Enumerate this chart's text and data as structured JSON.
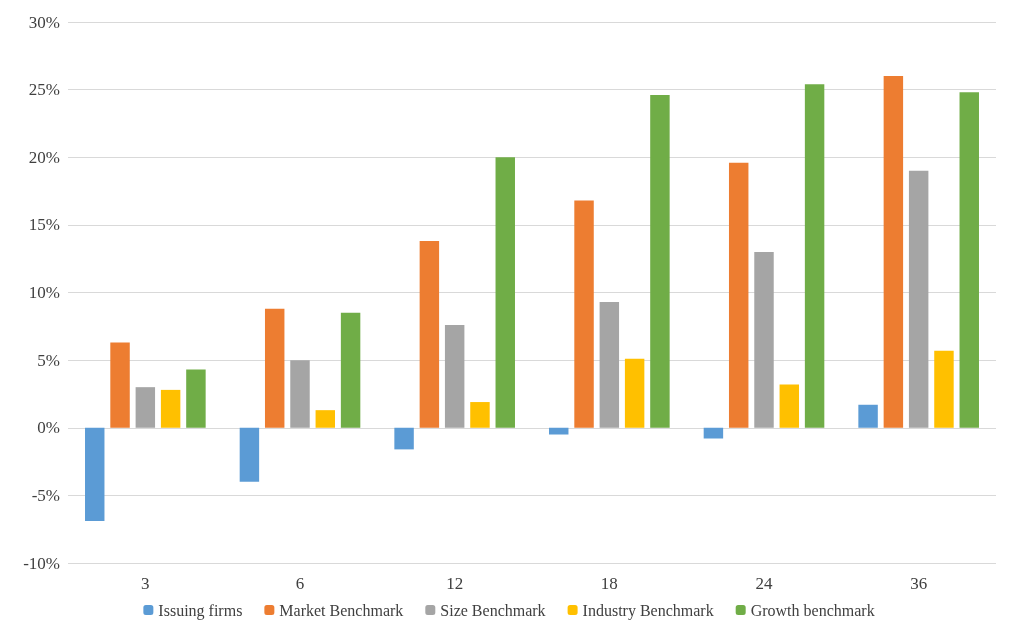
{
  "chart_data": {
    "type": "bar",
    "categories": [
      "3",
      "6",
      "12",
      "18",
      "24",
      "36"
    ],
    "series": [
      {
        "name": "Issuing firms",
        "color": "#5b9bd5",
        "values": [
          -6.9,
          -4.0,
          -1.6,
          -0.5,
          -0.8,
          1.7
        ]
      },
      {
        "name": "Market Benchmark",
        "color": "#ed7d31",
        "values": [
          6.3,
          8.8,
          13.8,
          16.8,
          19.6,
          26.0
        ]
      },
      {
        "name": "Size Benchmark",
        "color": "#a5a5a5",
        "values": [
          3.0,
          5.0,
          7.6,
          9.3,
          13.0,
          19.0
        ]
      },
      {
        "name": "Industry Benchmark",
        "color": "#ffc000",
        "values": [
          2.8,
          1.3,
          1.9,
          5.1,
          3.2,
          5.7
        ]
      },
      {
        "name": "Growth benchmark",
        "color": "#70ad47",
        "values": [
          4.3,
          8.5,
          20.0,
          24.6,
          25.4,
          24.8
        ]
      }
    ],
    "ylim": [
      -10,
      30
    ],
    "yticks": [
      {
        "value": -10,
        "label": "-10%"
      },
      {
        "value": -5,
        "label": "-5%"
      },
      {
        "value": 0,
        "label": "0%"
      },
      {
        "value": 5,
        "label": "5%"
      },
      {
        "value": 10,
        "label": "10%"
      },
      {
        "value": 15,
        "label": "15%"
      },
      {
        "value": 20,
        "label": "20%"
      },
      {
        "value": 25,
        "label": "25%"
      },
      {
        "value": 30,
        "label": "30%"
      }
    ],
    "grid": "y",
    "legend": "bottom"
  }
}
